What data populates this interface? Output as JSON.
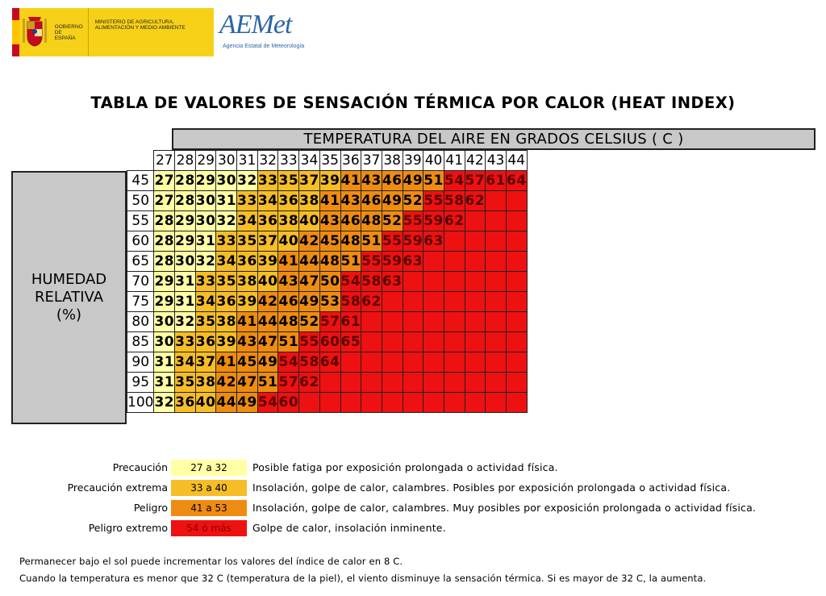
{
  "header": {
    "gov_text": "Gobierno de España",
    "ministry_text": "Ministerio de Agricultura, Alimentación y Medio Ambiente",
    "aemet_name": "AEMet",
    "aemet_subtitle": "Agencia Estatal de Meteorología"
  },
  "title": "TABLA DE VALORES DE SENSACIÓN TÉRMICA POR CALOR (HEAT INDEX)",
  "table": {
    "temperature_header": "TEMPERATURA DEL AIRE EN GRADOS CELSIUS ( C )",
    "humidity_label_lines": [
      "HUMEDAD",
      "RELATIVA",
      "(%)"
    ],
    "temperatures": [
      27,
      28,
      29,
      30,
      31,
      32,
      33,
      34,
      35,
      36,
      37,
      38,
      39,
      40,
      41,
      42,
      43,
      44
    ],
    "humidities": [
      45,
      50,
      55,
      60,
      65,
      70,
      75,
      80,
      85,
      90,
      95,
      100
    ],
    "values": [
      [
        27,
        28,
        29,
        30,
        32,
        33,
        35,
        37,
        39,
        41,
        43,
        46,
        49,
        51,
        54,
        57,
        61,
        64
      ],
      [
        27,
        28,
        30,
        31,
        33,
        34,
        36,
        38,
        41,
        43,
        46,
        49,
        52,
        55,
        58,
        62,
        null,
        null
      ],
      [
        28,
        29,
        30,
        32,
        34,
        36,
        38,
        40,
        43,
        46,
        48,
        52,
        55,
        59,
        62,
        null,
        null,
        null
      ],
      [
        28,
        29,
        31,
        33,
        35,
        37,
        40,
        42,
        45,
        48,
        51,
        55,
        59,
        63,
        null,
        null,
        null,
        null
      ],
      [
        28,
        30,
        32,
        34,
        36,
        39,
        41,
        44,
        48,
        51,
        55,
        59,
        63,
        null,
        null,
        null,
        null,
        null
      ],
      [
        29,
        31,
        33,
        35,
        38,
        40,
        43,
        47,
        50,
        54,
        58,
        63,
        null,
        null,
        null,
        null,
        null,
        null
      ],
      [
        29,
        31,
        34,
        36,
        39,
        42,
        46,
        49,
        53,
        58,
        62,
        null,
        null,
        null,
        null,
        null,
        null,
        null
      ],
      [
        30,
        32,
        35,
        38,
        41,
        44,
        48,
        52,
        57,
        61,
        null,
        null,
        null,
        null,
        null,
        null,
        null,
        null
      ],
      [
        30,
        33,
        36,
        39,
        43,
        47,
        51,
        55,
        60,
        65,
        null,
        null,
        null,
        null,
        null,
        null,
        null,
        null
      ],
      [
        31,
        34,
        37,
        41,
        45,
        49,
        54,
        58,
        64,
        null,
        null,
        null,
        null,
        null,
        null,
        null,
        null,
        null
      ],
      [
        31,
        35,
        38,
        42,
        47,
        51,
        57,
        62,
        null,
        null,
        null,
        null,
        null,
        null,
        null,
        null,
        null,
        null
      ],
      [
        32,
        36,
        40,
        44,
        49,
        54,
        60,
        null,
        null,
        null,
        null,
        null,
        null,
        null,
        null,
        null,
        null,
        null
      ]
    ]
  },
  "colors": {
    "caution": "#ffffa6",
    "extreme_caution": "#f6bd27",
    "danger": "#ee8c12",
    "extreme_danger": "#ee1111",
    "header_gray": "#c8c8c8",
    "extreme_danger_text": "#8b0000",
    "hot_text": "#5a0000"
  },
  "legend": [
    {
      "label": "Precaución",
      "range": "27 a 32",
      "description": "Posible fatiga por exposición prolongada o actividad física."
    },
    {
      "label": "Precaución extrema",
      "range": "33 a 40",
      "description": "Insolación, golpe de calor, calambres. Posibles por exposición prolongada o actividad física."
    },
    {
      "label": "Peligro",
      "range": "41 a 53",
      "description": "Insolación, golpe de calor, calambres. Muy posibles por exposición prolongada o actividad física."
    },
    {
      "label": "Peligro extremo",
      "range": "54 ó más",
      "description": "Golpe de calor, insolación inminente."
    }
  ],
  "notes": [
    "Permanecer bajo el sol puede incrementar los valores del índice de calor en 8 C.",
    "Cuando la temperatura es menor que 32 C (temperatura de la piel), el viento disminuye la sensación térmica. Si es mayor de 32 C, la aumenta."
  ]
}
